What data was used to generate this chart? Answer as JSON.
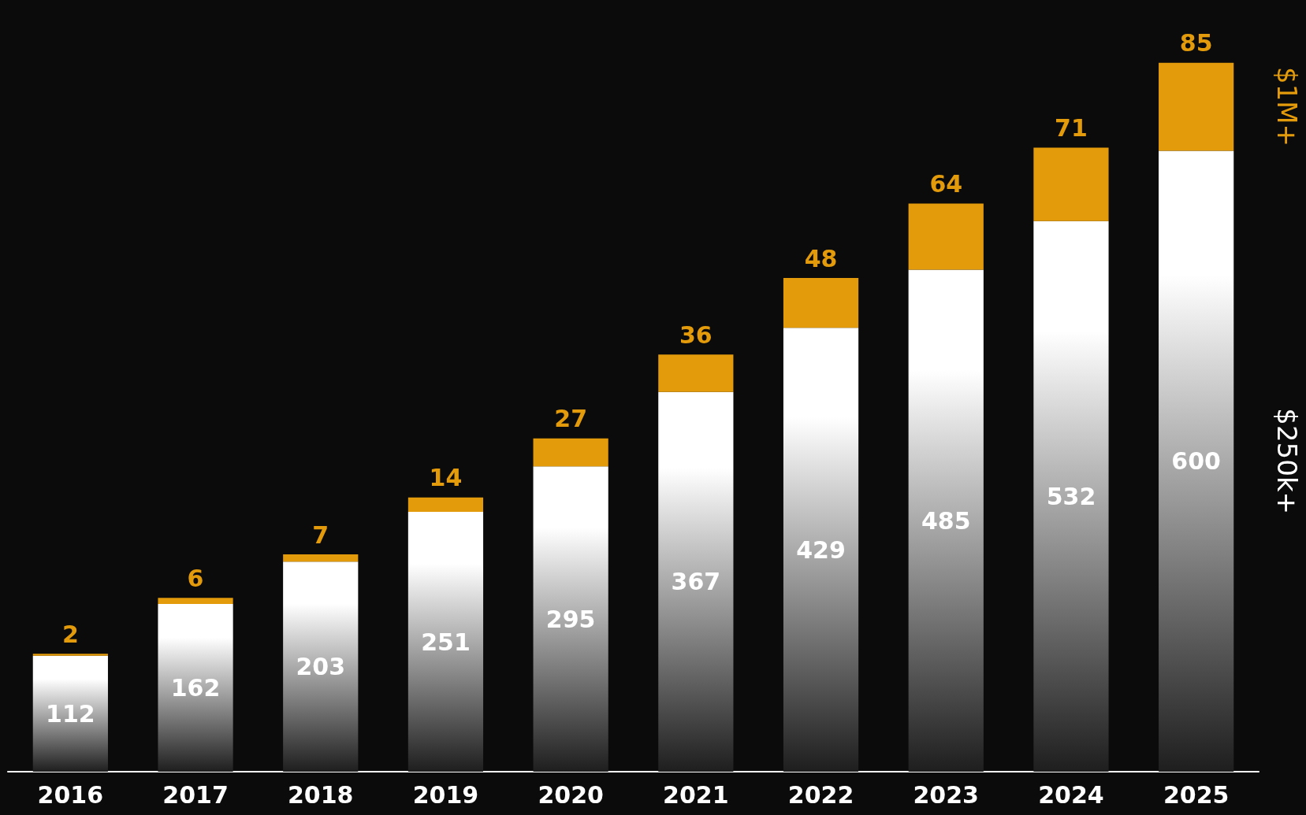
{
  "chart_data": {
    "type": "bar",
    "stacked": true,
    "data_labels": true,
    "legend": false,
    "categories": [
      "2016",
      "2017",
      "2018",
      "2019",
      "2020",
      "2021",
      "2022",
      "2023",
      "2024",
      "2025"
    ],
    "series": [
      {
        "name": "$250k+",
        "color": "#ffffff",
        "values": [
          112,
          162,
          203,
          251,
          295,
          367,
          429,
          485,
          532,
          600
        ]
      },
      {
        "name": "$1M+",
        "color": "#e39b0b",
        "values": [
          2,
          6,
          7,
          14,
          27,
          36,
          48,
          64,
          71,
          85
        ]
      }
    ]
  }
}
